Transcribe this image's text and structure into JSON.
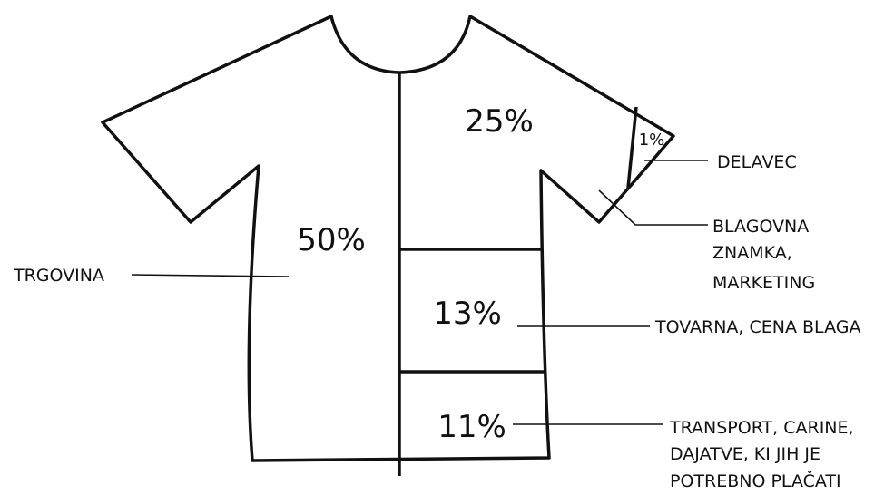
{
  "segments": [
    {
      "value": "50%",
      "label": [
        "TRGOVINA"
      ]
    },
    {
      "value": "25%",
      "label": [
        "BLAGOVNA",
        "ZNAMKA,",
        "MARKETING"
      ]
    },
    {
      "value": "1%",
      "label": [
        "DELAVEC"
      ]
    },
    {
      "value": "13%",
      "label": [
        "TOVARNA, CENA BLAGA"
      ]
    },
    {
      "value": "11%",
      "label": [
        "TRANSPORT, CARINE,",
        "DAJATVE, KI JIH JE",
        "POTREBNO PLAČATI"
      ]
    }
  ]
}
